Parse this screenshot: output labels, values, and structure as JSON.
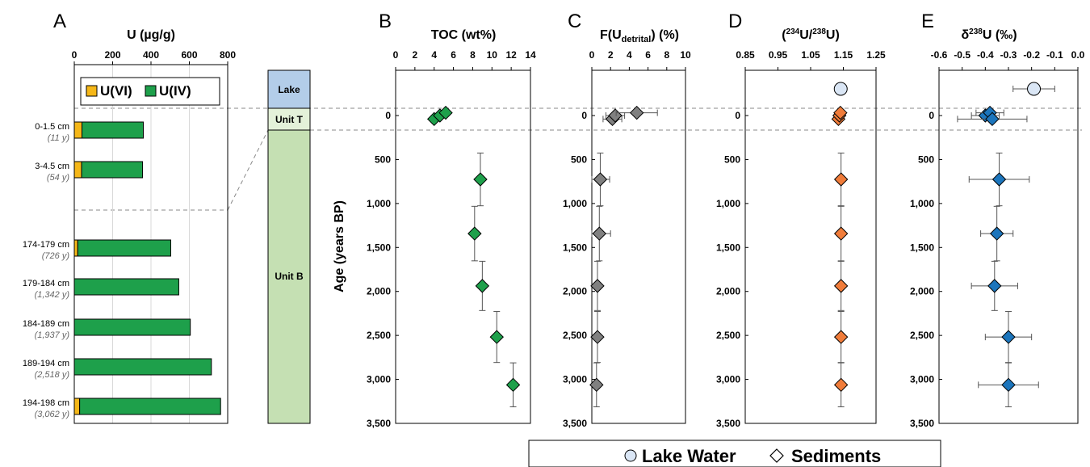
{
  "colors": {
    "u6": "#f5b718",
    "u4": "#1ea04b",
    "toc": "#1ea04b",
    "fdet": "#808080",
    "ratio": "#f07c3a",
    "delta": "#1c75bc",
    "lake_water": "#dae6f5",
    "unit_lake": "#b3cde9",
    "unit_t": "#e4f1d9",
    "unit_b": "#c5e0b3",
    "unit_lake_text": "#2f5597",
    "unit_t_text": "#8cc263",
    "unit_b_text": "#3fa14b"
  },
  "chart_data": [
    {
      "id": "A",
      "letter": "A",
      "type": "bar",
      "title": "U (µg/g)",
      "xlim": [
        0,
        800
      ],
      "ticks": [
        "0",
        "200",
        "400",
        "600",
        "800"
      ],
      "categories": [
        "0-1.5 cm",
        "3-4.5 cm",
        "174-179 cm",
        "179-184 cm",
        "184-189 cm",
        "189-194 cm",
        "194-198 cm"
      ],
      "ages": [
        "(11 y)",
        "(54 y)",
        "(726 y)",
        "(1,342 y)",
        "(1,937 y)",
        "(2,518 y)",
        "(3,062 y)"
      ],
      "legend": [
        "U(VI)",
        "U(IV)"
      ],
      "series": [
        {
          "name": "U(VI)",
          "values": [
            40,
            38,
            18,
            0,
            0,
            0,
            28
          ]
        },
        {
          "name": "U(IV)",
          "values": [
            320,
            318,
            485,
            545,
            605,
            715,
            735
          ]
        }
      ]
    },
    {
      "id": "units",
      "labels": [
        "Lake",
        "Unit T",
        "Unit B"
      ]
    },
    {
      "id": "B",
      "letter": "B",
      "type": "scatter",
      "title": "TOC (wt%)",
      "xlim": [
        0,
        14
      ],
      "xticks": [
        "0",
        "2",
        "4",
        "6",
        "8",
        "10",
        "12",
        "14"
      ],
      "ylabel": "Age (years BP)",
      "ylim": [
        0,
        3500
      ],
      "yticks": [
        "0",
        "500",
        "1,000",
        "1,500",
        "2,000",
        "2,500",
        "3,000",
        "3,500"
      ],
      "points": [
        {
          "x": 4.0,
          "y": 54,
          "yerr": 0
        },
        {
          "x": 4.6,
          "y": 30,
          "yerr": 0
        },
        {
          "x": 5.2,
          "y": 11,
          "yerr": 0
        },
        {
          "x": 8.8,
          "y": 726,
          "yerr": 300
        },
        {
          "x": 8.2,
          "y": 1342,
          "yerr": 310
        },
        {
          "x": 9.0,
          "y": 1937,
          "yerr": 280
        },
        {
          "x": 10.5,
          "y": 2518,
          "yerr": 290
        },
        {
          "x": 12.2,
          "y": 3062,
          "yerr": 250
        }
      ]
    },
    {
      "id": "C",
      "letter": "C",
      "type": "scatter",
      "title_main": "F(U",
      "title_sub": "detrital",
      "title_end": ") (%)",
      "xlim": [
        0,
        10
      ],
      "xticks": [
        "0",
        "2",
        "4",
        "6",
        "8",
        "10"
      ],
      "ylim": [
        0,
        3500
      ],
      "yticks": [
        "0",
        "500",
        "1,000",
        "1,500",
        "2,000",
        "2,500",
        "3,000",
        "3,500"
      ],
      "points": [
        {
          "x": 2.2,
          "y": 54,
          "xerr": 1.0,
          "yerr": 0
        },
        {
          "x": 2.5,
          "y": 30,
          "xerr": 1.0,
          "yerr": 0
        },
        {
          "x": 4.8,
          "y": 11,
          "xerr": 2.2,
          "yerr": 0
        },
        {
          "x": 0.9,
          "y": 726,
          "xerr": 1.0,
          "yerr": 300
        },
        {
          "x": 0.8,
          "y": 1342,
          "xerr": 1.2,
          "yerr": 310
        },
        {
          "x": 0.6,
          "y": 1937,
          "xerr": 0.3,
          "yerr": 280
        },
        {
          "x": 0.6,
          "y": 2518,
          "xerr": 0.3,
          "yerr": 290
        },
        {
          "x": 0.5,
          "y": 3062,
          "xerr": 0.3,
          "yerr": 250
        }
      ]
    },
    {
      "id": "D",
      "letter": "D",
      "type": "scatter",
      "title_pre1": "(",
      "title_sup1": "234",
      "title_mid": "U/",
      "title_sup2": "238",
      "title_post": "U)",
      "xlim": [
        0.85,
        1.25
      ],
      "xticks": [
        "0.85",
        "0.95",
        "1.05",
        "1.15",
        "1.25"
      ],
      "ylim": [
        0,
        3500
      ],
      "yticks": [
        "0",
        "500",
        "1,000",
        "1,500",
        "2,000",
        "2,500",
        "3,000",
        "3,500"
      ],
      "lake_water": {
        "x": 1.142,
        "y": -300
      },
      "points": [
        {
          "x": 1.135,
          "y": 54,
          "yerr": 0
        },
        {
          "x": 1.138,
          "y": 30,
          "yerr": 0
        },
        {
          "x": 1.141,
          "y": 11,
          "yerr": 0
        },
        {
          "x": 1.143,
          "y": 726,
          "yerr": 300
        },
        {
          "x": 1.143,
          "y": 1342,
          "yerr": 310
        },
        {
          "x": 1.143,
          "y": 1937,
          "yerr": 280
        },
        {
          "x": 1.143,
          "y": 2518,
          "yerr": 290
        },
        {
          "x": 1.143,
          "y": 3062,
          "yerr": 250
        }
      ]
    },
    {
      "id": "E",
      "letter": "E",
      "type": "scatter",
      "title_main": "δ",
      "title_sup": "238",
      "title_end": "U (‰)",
      "xlim": [
        -0.6,
        0.0
      ],
      "xticks": [
        "-0.6",
        "-0.5",
        "-0.4",
        "-0.3",
        "-0.2",
        "-0.1",
        "0.0"
      ],
      "ylim": [
        0,
        3500
      ],
      "yticks": [
        "0",
        "500",
        "1,000",
        "1,500",
        "2,000",
        "2,500",
        "3,000",
        "3,500"
      ],
      "lake_water": {
        "x": -0.19,
        "y": -300,
        "xerr": 0.09
      },
      "points": [
        {
          "x": -0.4,
          "y": 30,
          "xerr": 0.06,
          "yerr": 0
        },
        {
          "x": -0.38,
          "y": 11,
          "xerr": 0.06,
          "yerr": 0
        },
        {
          "x": -0.37,
          "y": 54,
          "xerr": 0.15,
          "yerr": 0
        },
        {
          "x": -0.34,
          "y": 726,
          "xerr": 0.13,
          "yerr": 300
        },
        {
          "x": -0.35,
          "y": 1342,
          "xerr": 0.07,
          "yerr": 310
        },
        {
          "x": -0.36,
          "y": 1937,
          "xerr": 0.1,
          "yerr": 280
        },
        {
          "x": -0.3,
          "y": 2518,
          "xerr": 0.1,
          "yerr": 290
        },
        {
          "x": -0.3,
          "y": 3062,
          "xerr": 0.13,
          "yerr": 250
        }
      ]
    }
  ],
  "legend_bottom": {
    "lake_water": "Lake Water",
    "sediments": "Sediments"
  }
}
